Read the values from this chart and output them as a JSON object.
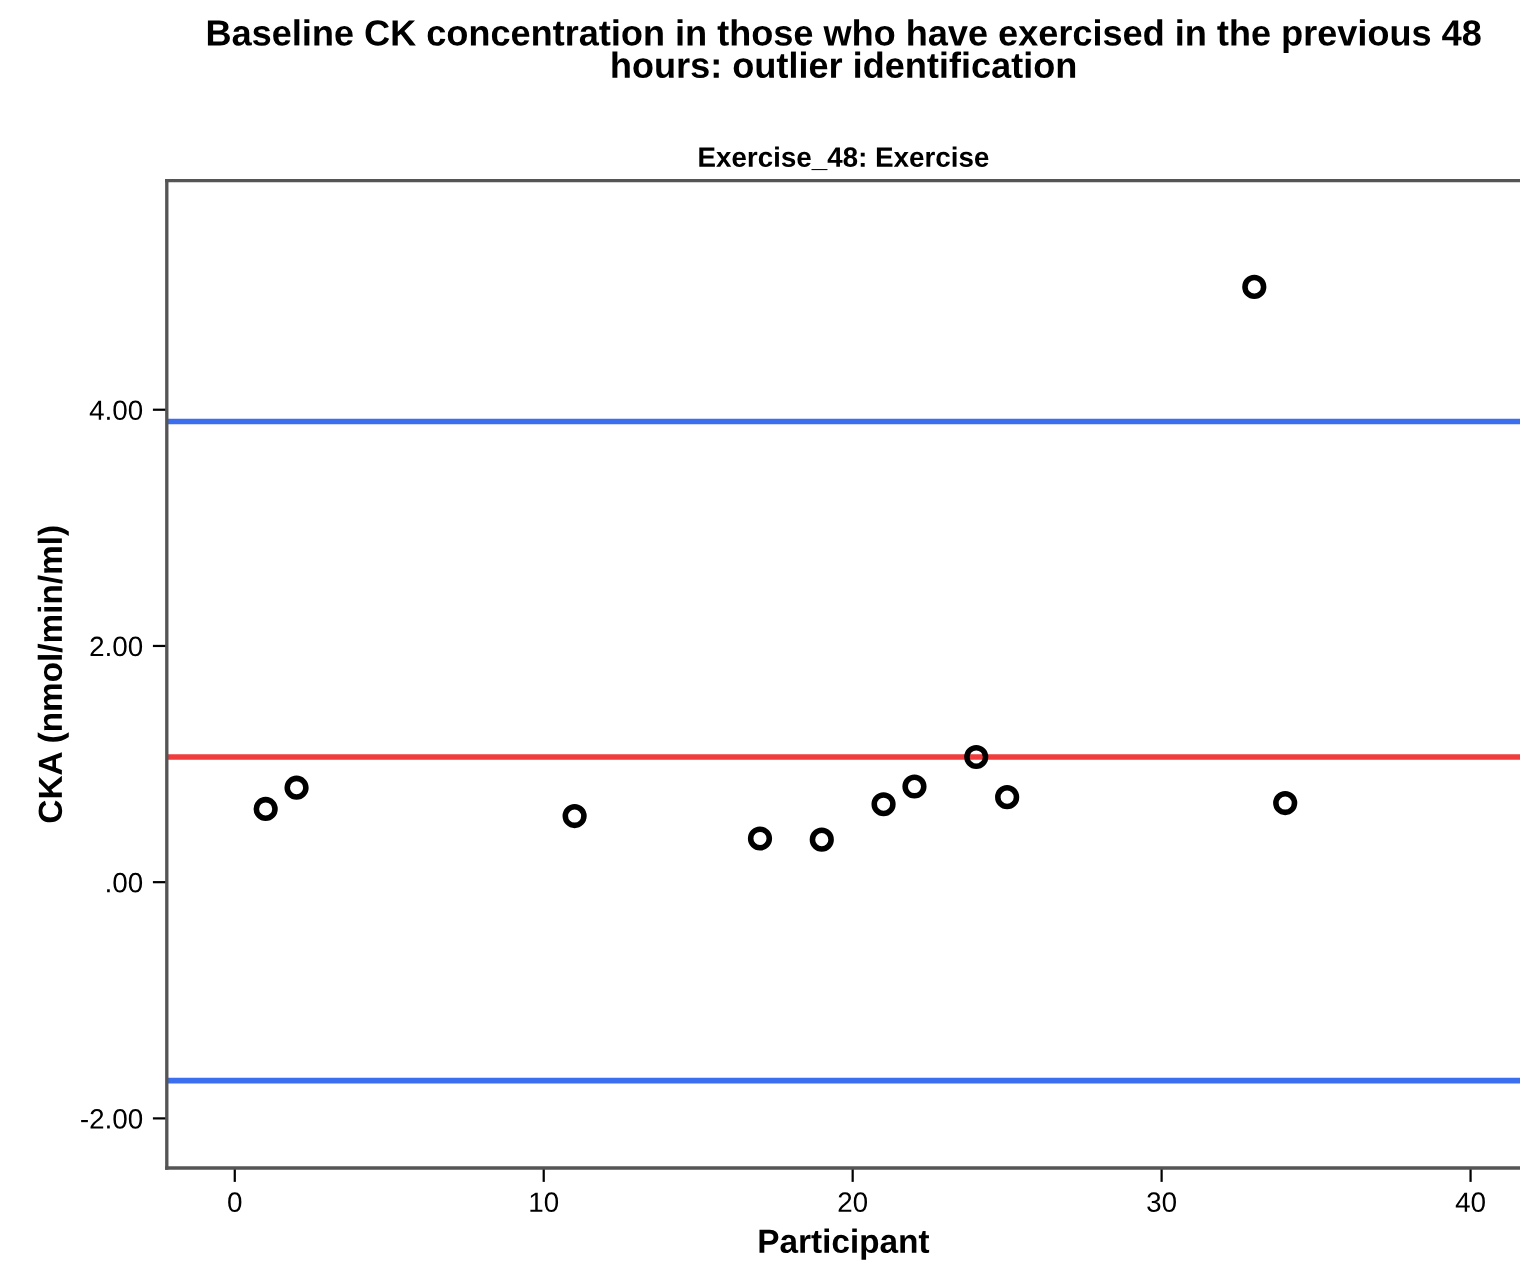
{
  "chart_data": {
    "type": "scatter",
    "title": "Baseline CK concentration in those who have exercised in the previous 48\nhours: outlier identification",
    "subtitle": "Exercise_48: Exercise",
    "xlabel": "Participant",
    "ylabel": "CKA (nmol/min/ml)",
    "x": [
      1,
      2,
      11,
      17,
      19,
      21,
      22,
      24,
      25,
      33,
      34
    ],
    "values": [
      0.62,
      0.8,
      0.56,
      0.37,
      0.36,
      0.66,
      0.81,
      1.06,
      0.72,
      5.04,
      0.67
    ],
    "marker": "circle",
    "color": "#000000",
    "xlim": [
      -2.2,
      41.6
    ],
    "ylim": [
      -2.42,
      5.94
    ],
    "xticks": [
      0,
      10,
      20,
      30,
      40
    ],
    "yticks": [
      {
        "value": -2,
        "label": "-2.00"
      },
      {
        "value": 0,
        "label": ".00"
      },
      {
        "value": 2,
        "label": "2.00"
      },
      {
        "value": 4,
        "label": "4.00"
      }
    ],
    "ref_lines": [
      {
        "axis": "y",
        "value": 3.9,
        "color": "#3c6ff0"
      },
      {
        "axis": "y",
        "value": 1.06,
        "color": "#f03c3c"
      },
      {
        "axis": "y",
        "value": -1.68,
        "color": "#3c6ff0"
      }
    ],
    "grid": false,
    "legend": false
  }
}
